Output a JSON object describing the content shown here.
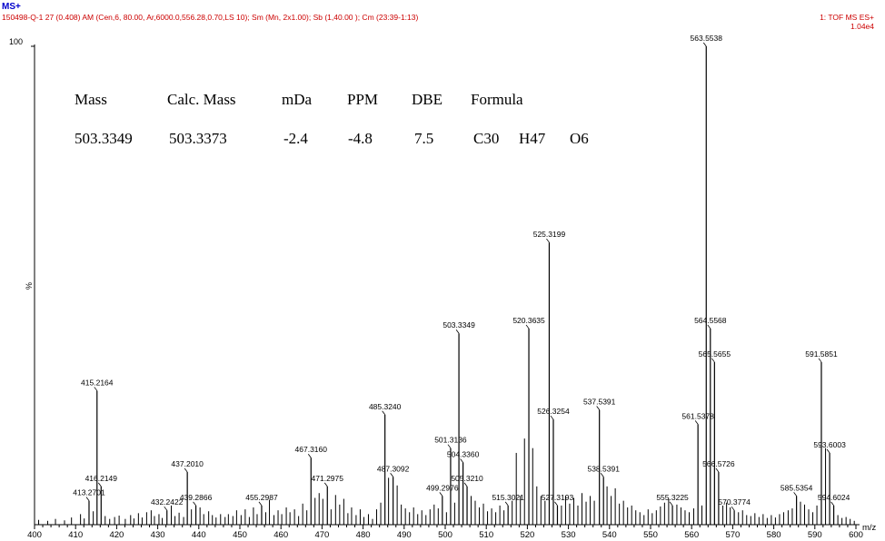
{
  "header": {
    "mode": "MS+",
    "params": "150498-Q-1 27 (0.408) AM (Cen,6, 80.00, Ar,6000.0,556.28,0.70,LS 10); Sm (Mn, 2x1.00); Sb (1,40.00 ); Cm (23:39-1:13)",
    "instrument": "1: TOF MS ES+",
    "scale": "1.04e4"
  },
  "formula_table": {
    "headers": [
      "Mass",
      "Calc. Mass",
      "mDa",
      "PPM",
      "DBE",
      "Formula"
    ],
    "row": [
      "503.3349",
      "503.3373",
      "-2.4",
      "-4.8",
      "7.5",
      "C30",
      "H47",
      "O6"
    ]
  },
  "colors": {
    "mode": "#0000cc",
    "header": "#cc0000",
    "axis": "#000000",
    "peak": "#000000"
  },
  "chart_data": {
    "type": "bar",
    "ylabel": "%",
    "y_top_label": "100",
    "xunit": "m/z",
    "xlim": [
      400,
      600
    ],
    "ylim": [
      0,
      100
    ],
    "xticks": [
      400,
      410,
      420,
      430,
      440,
      450,
      460,
      470,
      480,
      490,
      500,
      510,
      520,
      530,
      540,
      550,
      560,
      570,
      580,
      590,
      600
    ],
    "labeled_peaks": [
      {
        "mz": 413.2701,
        "intensity": 5,
        "label": "413.2701"
      },
      {
        "mz": 415.2164,
        "intensity": 28,
        "label": "415.2164"
      },
      {
        "mz": 416.2149,
        "intensity": 8,
        "label": "416.2149"
      },
      {
        "mz": 432.2422,
        "intensity": 3,
        "label": "432.2422"
      },
      {
        "mz": 437.201,
        "intensity": 11,
        "label": "437.2010"
      },
      {
        "mz": 439.2866,
        "intensity": 4,
        "label": "439.2866"
      },
      {
        "mz": 455.2987,
        "intensity": 4,
        "label": "455.2987"
      },
      {
        "mz": 467.316,
        "intensity": 14,
        "label": "467.3160"
      },
      {
        "mz": 471.2975,
        "intensity": 8,
        "label": "471.2975"
      },
      {
        "mz": 485.324,
        "intensity": 23,
        "label": "485.3240"
      },
      {
        "mz": 487.3092,
        "intensity": 10,
        "label": "487.3092"
      },
      {
        "mz": 499.2976,
        "intensity": 6,
        "label": "499.2976"
      },
      {
        "mz": 501.3136,
        "intensity": 16,
        "label": "501.3136"
      },
      {
        "mz": 503.3349,
        "intensity": 40,
        "label": "503.3349"
      },
      {
        "mz": 504.336,
        "intensity": 13,
        "label": "504.3360"
      },
      {
        "mz": 505.321,
        "intensity": 8,
        "label": "505.3210"
      },
      {
        "mz": 515.3021,
        "intensity": 4,
        "label": "515.3021"
      },
      {
        "mz": 520.3635,
        "intensity": 41,
        "label": "520.3635"
      },
      {
        "mz": 525.3199,
        "intensity": 59,
        "label": "525.3199"
      },
      {
        "mz": 526.3254,
        "intensity": 22,
        "label": "526.3254"
      },
      {
        "mz": 527.3193,
        "intensity": 4,
        "label": "527.3193"
      },
      {
        "mz": 537.5391,
        "intensity": 24,
        "label": "537.5391"
      },
      {
        "mz": 538.5391,
        "intensity": 10,
        "label": "538.5391"
      },
      {
        "mz": 555.3225,
        "intensity": 4,
        "label": "555.3225"
      },
      {
        "mz": 561.5378,
        "intensity": 21,
        "label": "561.5378"
      },
      {
        "mz": 563.5538,
        "intensity": 100,
        "label": "563.5538"
      },
      {
        "mz": 564.5568,
        "intensity": 41,
        "label": "564.5568"
      },
      {
        "mz": 565.5655,
        "intensity": 34,
        "label": "565.5655"
      },
      {
        "mz": 566.5726,
        "intensity": 11,
        "label": "566.5726"
      },
      {
        "mz": 570.3774,
        "intensity": 3,
        "label": "570.3774"
      },
      {
        "mz": 585.5354,
        "intensity": 6,
        "label": "585.5354"
      },
      {
        "mz": 591.5851,
        "intensity": 34,
        "label": "591.5851"
      },
      {
        "mz": 593.6003,
        "intensity": 15,
        "label": "593.6003"
      },
      {
        "mz": 594.6024,
        "intensity": 4,
        "label": "594.6024"
      }
    ],
    "minor_peaks": [
      [
        401.0,
        1.0
      ],
      [
        403.2,
        0.8
      ],
      [
        405.1,
        1.2
      ],
      [
        407.3,
        0.9
      ],
      [
        409.0,
        1.5
      ],
      [
        411.2,
        2.2
      ],
      [
        412.1,
        1.3
      ],
      [
        414.3,
        2.8
      ],
      [
        417.2,
        1.8
      ],
      [
        418.3,
        1.2
      ],
      [
        419.5,
        1.6
      ],
      [
        420.6,
        1.9
      ],
      [
        422.1,
        1.2
      ],
      [
        423.4,
        2.0
      ],
      [
        424.2,
        1.3
      ],
      [
        425.3,
        2.4
      ],
      [
        426.2,
        1.5
      ],
      [
        427.3,
        2.6
      ],
      [
        428.4,
        3.0
      ],
      [
        429.2,
        1.8
      ],
      [
        430.3,
        2.2
      ],
      [
        431.1,
        1.4
      ],
      [
        433.3,
        4.0
      ],
      [
        434.2,
        1.8
      ],
      [
        435.2,
        2.5
      ],
      [
        436.3,
        1.6
      ],
      [
        438.2,
        3.2
      ],
      [
        440.3,
        3.6
      ],
      [
        441.2,
        2.2
      ],
      [
        442.4,
        2.8
      ],
      [
        443.3,
        2.0
      ],
      [
        444.2,
        1.5
      ],
      [
        445.3,
        2.2
      ],
      [
        446.4,
        1.6
      ],
      [
        447.2,
        2.2
      ],
      [
        448.3,
        1.8
      ],
      [
        449.2,
        3.0
      ],
      [
        450.3,
        2.0
      ],
      [
        451.3,
        3.2
      ],
      [
        452.3,
        1.6
      ],
      [
        453.3,
        3.6
      ],
      [
        454.2,
        2.2
      ],
      [
        456.3,
        2.6
      ],
      [
        457.2,
        5.2
      ],
      [
        458.3,
        2.0
      ],
      [
        459.3,
        3.0
      ],
      [
        460.2,
        2.2
      ],
      [
        461.3,
        3.6
      ],
      [
        462.2,
        2.6
      ],
      [
        463.3,
        3.2
      ],
      [
        464.3,
        1.8
      ],
      [
        465.3,
        4.4
      ],
      [
        466.3,
        3.0
      ],
      [
        468.3,
        5.6
      ],
      [
        469.3,
        6.6
      ],
      [
        470.2,
        5.4
      ],
      [
        472.2,
        3.2
      ],
      [
        473.3,
        6.2
      ],
      [
        474.3,
        4.2
      ],
      [
        475.3,
        5.4
      ],
      [
        476.3,
        2.4
      ],
      [
        477.2,
        3.6
      ],
      [
        478.3,
        2.0
      ],
      [
        479.3,
        3.2
      ],
      [
        480.2,
        1.6
      ],
      [
        481.3,
        2.2
      ],
      [
        482.3,
        1.2
      ],
      [
        483.3,
        3.2
      ],
      [
        484.3,
        4.6
      ],
      [
        486.2,
        9.8
      ],
      [
        488.3,
        8.2
      ],
      [
        489.3,
        4.2
      ],
      [
        490.3,
        3.4
      ],
      [
        491.3,
        2.6
      ],
      [
        492.3,
        3.6
      ],
      [
        493.3,
        2.2
      ],
      [
        494.3,
        3.0
      ],
      [
        495.3,
        2.0
      ],
      [
        496.3,
        3.2
      ],
      [
        497.3,
        4.2
      ],
      [
        498.3,
        3.4
      ],
      [
        500.3,
        2.6
      ],
      [
        502.3,
        4.6
      ],
      [
        506.3,
        6.0
      ],
      [
        507.3,
        5.0
      ],
      [
        508.3,
        3.6
      ],
      [
        509.3,
        4.4
      ],
      [
        510.3,
        2.8
      ],
      [
        511.3,
        3.4
      ],
      [
        512.3,
        2.6
      ],
      [
        513.3,
        4.0
      ],
      [
        514.3,
        3.0
      ],
      [
        516.3,
        5.0
      ],
      [
        517.3,
        15.0
      ],
      [
        518.3,
        6.0
      ],
      [
        519.3,
        18.0
      ],
      [
        521.3,
        16.0
      ],
      [
        522.3,
        8.0
      ],
      [
        523.3,
        6.0
      ],
      [
        524.3,
        5.0
      ],
      [
        528.3,
        4.0
      ],
      [
        529.3,
        6.0
      ],
      [
        530.3,
        4.4
      ],
      [
        531.3,
        5.6
      ],
      [
        532.3,
        4.0
      ],
      [
        533.3,
        6.6
      ],
      [
        534.3,
        4.8
      ],
      [
        535.3,
        6.0
      ],
      [
        536.3,
        5.0
      ],
      [
        539.4,
        8.0
      ],
      [
        540.4,
        6.0
      ],
      [
        541.4,
        7.6
      ],
      [
        542.4,
        4.4
      ],
      [
        543.4,
        5.0
      ],
      [
        544.4,
        3.6
      ],
      [
        545.4,
        4.0
      ],
      [
        546.4,
        3.0
      ],
      [
        547.4,
        2.6
      ],
      [
        548.4,
        2.0
      ],
      [
        549.4,
        3.2
      ],
      [
        550.4,
        2.4
      ],
      [
        551.4,
        3.0
      ],
      [
        552.4,
        3.8
      ],
      [
        553.4,
        4.6
      ],
      [
        554.4,
        5.4
      ],
      [
        556.4,
        4.2
      ],
      [
        557.4,
        3.6
      ],
      [
        558.4,
        3.0
      ],
      [
        559.4,
        2.6
      ],
      [
        560.5,
        3.4
      ],
      [
        562.5,
        4.0
      ],
      [
        567.6,
        4.0
      ],
      [
        568.5,
        4.6
      ],
      [
        569.4,
        3.6
      ],
      [
        571.4,
        2.6
      ],
      [
        572.4,
        3.0
      ],
      [
        573.4,
        2.0
      ],
      [
        574.4,
        1.8
      ],
      [
        575.4,
        2.4
      ],
      [
        576.4,
        1.6
      ],
      [
        577.4,
        2.2
      ],
      [
        578.4,
        1.4
      ],
      [
        579.4,
        2.0
      ],
      [
        580.4,
        1.5
      ],
      [
        581.4,
        2.2
      ],
      [
        582.4,
        2.6
      ],
      [
        583.5,
        3.0
      ],
      [
        584.5,
        3.4
      ],
      [
        586.5,
        4.8
      ],
      [
        587.5,
        4.2
      ],
      [
        588.5,
        3.2
      ],
      [
        589.5,
        2.6
      ],
      [
        590.5,
        4.0
      ],
      [
        592.6,
        16.0
      ],
      [
        595.6,
        2.0
      ],
      [
        596.6,
        1.4
      ],
      [
        597.6,
        1.6
      ],
      [
        598.6,
        1.2
      ],
      [
        599.6,
        0.8
      ]
    ]
  }
}
